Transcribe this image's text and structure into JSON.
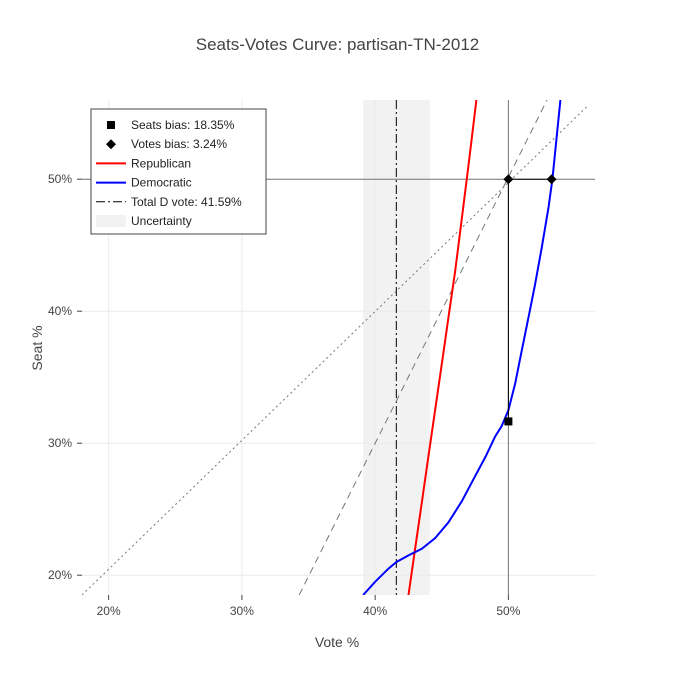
{
  "chart_data": {
    "type": "line",
    "title": "Seats-Votes Curve: partisan-TN-2012",
    "xlabel": "Vote %",
    "ylabel": "Seat %",
    "xlim": [
      18.0,
      56.5
    ],
    "ylim": [
      18.5,
      56.0
    ],
    "x_ticks": [
      20,
      30,
      40,
      50
    ],
    "x_tick_labels": [
      "20%",
      "30%",
      "40%",
      "50%"
    ],
    "y_ticks": [
      20,
      30,
      40,
      50
    ],
    "y_tick_labels": [
      "20%",
      "30%",
      "40%",
      "50%"
    ],
    "grid": true,
    "legend_position": "top-left",
    "uncertainty_band": [
      39.1,
      44.1
    ],
    "total_d_vote": 41.59,
    "reference_line_50_seat": 50,
    "reference_line_50_vote": 50,
    "series": [
      {
        "name": "Republican",
        "color": "#ff0000",
        "x": [
          42.5,
          43.0,
          43.5,
          44.0,
          44.5,
          45.0,
          45.5,
          46.0,
          46.5,
          47.0,
          47.6
        ],
        "y": [
          18.5,
          22.0,
          25.5,
          29.0,
          32.5,
          36.0,
          39.5,
          43.0,
          47.0,
          51.0,
          56.0
        ]
      },
      {
        "name": "Democratic",
        "color": "#0000ff",
        "x": [
          39.1,
          40.0,
          41.0,
          41.6,
          42.5,
          43.5,
          44.5,
          45.5,
          46.5,
          47.5,
          48.3,
          49.0,
          49.5,
          50.0,
          50.5,
          51.0,
          51.5,
          52.0,
          52.5,
          53.0,
          53.3,
          53.6,
          53.9
        ],
        "y": [
          18.5,
          19.5,
          20.5,
          21.0,
          21.5,
          22.0,
          22.8,
          24.0,
          25.6,
          27.5,
          29.0,
          30.5,
          31.3,
          32.5,
          34.5,
          37.0,
          39.5,
          42.0,
          44.8,
          47.8,
          50.0,
          53.0,
          56.0
        ]
      }
    ],
    "reference_lines": [
      {
        "style": "dotted",
        "x": [
          18.0,
          56.0
        ],
        "y": [
          18.5,
          55.6
        ]
      },
      {
        "style": "dashed",
        "x": [
          34.3,
          52.9
        ],
        "y": [
          18.5,
          56.0
        ]
      }
    ],
    "markers": [
      {
        "name": "Seats bias: 18.35%",
        "symbol": "square",
        "points": [
          [
            50.0,
            31.65
          ]
        ]
      },
      {
        "name": "Votes bias: 3.24%",
        "symbol": "diamond",
        "points": [
          [
            50.0,
            50.0
          ],
          [
            53.24,
            50.0
          ]
        ]
      }
    ],
    "legend": [
      {
        "label": "Seats bias: 18.35%",
        "kind": "square",
        "color": "#000000"
      },
      {
        "label": "Votes bias: 3.24%",
        "kind": "diamond",
        "color": "#000000"
      },
      {
        "label": "Republican",
        "kind": "line",
        "color": "#ff0000"
      },
      {
        "label": "Democratic",
        "kind": "line",
        "color": "#0000ff"
      },
      {
        "label": "Total D vote: 41.59%",
        "kind": "dashdot",
        "color": "#000000"
      },
      {
        "label": "Uncertainty",
        "kind": "band",
        "color": "#f2f2f2"
      }
    ]
  }
}
